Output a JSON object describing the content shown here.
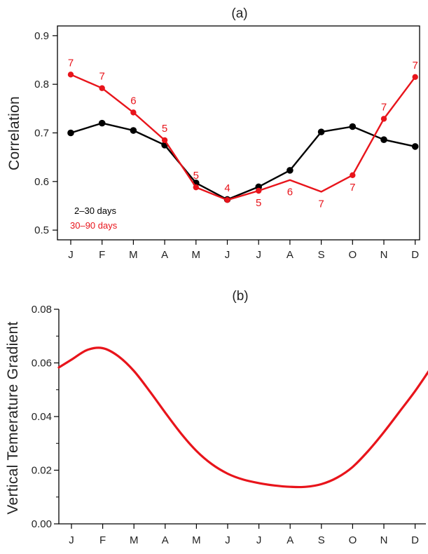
{
  "chart_data": [
    {
      "type": "line",
      "title": "(a)",
      "xlabel": "",
      "ylabel": "Correlation",
      "categories": [
        "J",
        "F",
        "M",
        "A",
        "M",
        "J",
        "J",
        "A",
        "S",
        "O",
        "N",
        "D"
      ],
      "ylim": [
        0.48,
        0.92
      ],
      "yticks": [
        0.5,
        0.6,
        0.7,
        0.8,
        0.9
      ],
      "ytick_labels": [
        "0.5",
        "0.6",
        "0.7",
        "0.8",
        "0.9"
      ],
      "grid": false,
      "legend_placement": "bottom-left",
      "series": [
        {
          "name": "2–30 days",
          "color": "#000000",
          "values": [
            0.7,
            0.72,
            0.705,
            0.675,
            0.597,
            0.563,
            0.589,
            0.623,
            0.702,
            0.713,
            0.686,
            0.672
          ],
          "markers": [
            true,
            true,
            true,
            true,
            true,
            true,
            true,
            true,
            true,
            true,
            true,
            true
          ],
          "labels": []
        },
        {
          "name": "30–90 days",
          "color": "#e8141b",
          "values": [
            0.82,
            0.792,
            0.742,
            0.685,
            0.588,
            0.562,
            0.581,
            0.603,
            0.579,
            0.613,
            0.729,
            0.815
          ],
          "markers": [
            true,
            true,
            true,
            true,
            true,
            true,
            true,
            false,
            false,
            true,
            true,
            true
          ],
          "labels": [
            "7",
            "7",
            "6",
            "5",
            "5",
            "4",
            "5",
            "6",
            "7",
            "7",
            "7",
            "7"
          ],
          "label_side": [
            "above",
            "above",
            "above",
            "above",
            "above",
            "above",
            "below",
            "below",
            "below",
            "below",
            "above",
            "above"
          ]
        }
      ]
    },
    {
      "type": "line",
      "title": "(b)",
      "xlabel": "",
      "ylabel": "Vertical Temerature Gradient",
      "categories": [
        "J",
        "F",
        "M",
        "A",
        "M",
        "J",
        "J",
        "A",
        "S",
        "O",
        "N",
        "D"
      ],
      "ylim": [
        0.0,
        0.08
      ],
      "yticks": [
        0.0,
        0.02,
        0.04,
        0.06,
        0.08
      ],
      "ytick_labels": [
        "0.00",
        "0.02",
        "0.04",
        "0.06",
        "0.08"
      ],
      "minor_yticks": [
        0.01,
        0.03,
        0.05,
        0.07
      ],
      "grid": false,
      "series": [
        {
          "color": "#e8141b",
          "x": [
            0.0,
            0.5,
            1.0,
            1.5,
            2.0,
            2.5,
            3.0,
            3.5,
            4.0,
            4.5,
            5.0,
            5.5,
            6.0,
            6.5,
            7.0,
            7.5,
            8.0,
            8.5,
            9.0,
            9.5,
            10.0,
            10.5,
            11.0,
            11.5
          ],
          "values": [
            0.0612,
            0.0648,
            0.0655,
            0.0625,
            0.057,
            0.0495,
            0.0415,
            0.0338,
            0.0272,
            0.0222,
            0.0187,
            0.0165,
            0.0152,
            0.0143,
            0.0138,
            0.0138,
            0.0148,
            0.0172,
            0.0212,
            0.0272,
            0.0342,
            0.0418,
            0.0495,
            0.058
          ]
        }
      ]
    }
  ]
}
